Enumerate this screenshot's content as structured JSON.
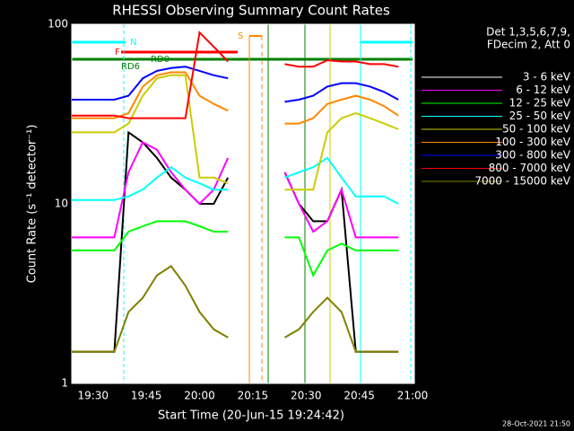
{
  "chart_data": {
    "type": "line",
    "title": "RHESSI Observing Summary Count Rates",
    "x_label": "Start Time (20-Jun-15 19:24:42)",
    "y_label": "Count Rate (s⁻¹ detector⁻¹)",
    "legend_header": [
      "Det 1,3,5,6,7,9,",
      "FDecim 2, Att 0"
    ],
    "footer": "28-Oct-2021 21:50",
    "annotations": [
      "N",
      "F",
      "RD0",
      "RD6",
      "S"
    ],
    "log_y": true,
    "x": [
      "19:24",
      "19:28",
      "19:32",
      "19:36",
      "19:40",
      "19:44",
      "19:48",
      "19:52",
      "19:56",
      "20:00",
      "20:04",
      "20:08",
      "20:12",
      "20:16",
      "20:20",
      "20:24",
      "20:28",
      "20:32",
      "20:36",
      "20:40",
      "20:44",
      "20:48",
      "20:52",
      "20:56",
      "21:00"
    ],
    "xlim": [
      "19:24",
      "21:00"
    ],
    "xticks": [
      "19:30",
      "19:45",
      "20:00",
      "20:15",
      "20:30",
      "20:45",
      "21:00"
    ],
    "ylim": [
      1,
      100
    ],
    "yticks": [
      1,
      10,
      100
    ],
    "series": [
      {
        "name": "3 - 6 keV",
        "color": "#000000",
        "values": [
          1.5,
          1.5,
          1.5,
          1.5,
          25,
          22,
          18,
          14,
          12,
          10,
          10,
          14,
          null,
          null,
          null,
          15,
          10,
          8,
          8,
          12,
          1.5,
          1.5,
          1.5,
          1.5,
          null
        ]
      },
      {
        "name": "6 - 12 keV",
        "color": "#ff00ff",
        "values": [
          6.5,
          6.5,
          6.5,
          6.5,
          15,
          22,
          20,
          15,
          12,
          10,
          12,
          18,
          null,
          null,
          null,
          15,
          10,
          7,
          8,
          12,
          6.5,
          6.5,
          6.5,
          6.5,
          null
        ]
      },
      {
        "name": "12 - 25 keV",
        "color": "#00ff00",
        "values": [
          5.5,
          5.5,
          5.5,
          5.5,
          7,
          7.5,
          8,
          8,
          8,
          7.5,
          7,
          7,
          null,
          null,
          null,
          6.5,
          6.5,
          4,
          5.5,
          6,
          5.5,
          5.5,
          5.5,
          5.5,
          null
        ]
      },
      {
        "name": "25 - 50 keV",
        "color": "#00ffff",
        "values": [
          10.5,
          10.5,
          10.5,
          10.5,
          11,
          12,
          14,
          16,
          14,
          13,
          12,
          12,
          null,
          null,
          null,
          14,
          15,
          16,
          18,
          14,
          11,
          11,
          11,
          10,
          null
        ]
      },
      {
        "name": "50 - 100 keV",
        "color": "#cccc00",
        "values": [
          25,
          25,
          25,
          25,
          28,
          40,
          50,
          52,
          52,
          14,
          14,
          13,
          null,
          null,
          null,
          12,
          12,
          12,
          25,
          30,
          32,
          30,
          28,
          26,
          null
        ]
      },
      {
        "name": "100 - 300 keV",
        "color": "#ff8800",
        "values": [
          30,
          30,
          30,
          30,
          32,
          45,
          52,
          54,
          54,
          40,
          36,
          33,
          null,
          null,
          null,
          28,
          28,
          30,
          36,
          38,
          40,
          38,
          35,
          31,
          null
        ]
      },
      {
        "name": "300 - 800 keV",
        "color": "#0000ff",
        "values": [
          38,
          38,
          38,
          38,
          40,
          50,
          55,
          57,
          58,
          55,
          52,
          50,
          null,
          null,
          null,
          37,
          38,
          40,
          45,
          47,
          47,
          45,
          42,
          38,
          null
        ]
      },
      {
        "name": "800 - 7000 keV",
        "color": "#ff0000",
        "values": [
          31,
          31,
          31,
          31,
          30,
          30,
          30,
          30,
          30,
          90,
          75,
          62,
          null,
          null,
          null,
          60,
          58,
          58,
          63,
          62,
          62,
          60,
          60,
          58,
          null
        ]
      },
      {
        "name": "7000 - 15000 keV",
        "color": "#808000",
        "values": [
          1.5,
          1.5,
          1.5,
          1.5,
          2.5,
          3,
          4,
          4.5,
          3.5,
          2.5,
          2,
          1.8,
          null,
          null,
          null,
          1.8,
          2,
          2.5,
          3,
          2.5,
          1.5,
          1.5,
          1.5,
          1.5,
          null
        ]
      }
    ]
  }
}
